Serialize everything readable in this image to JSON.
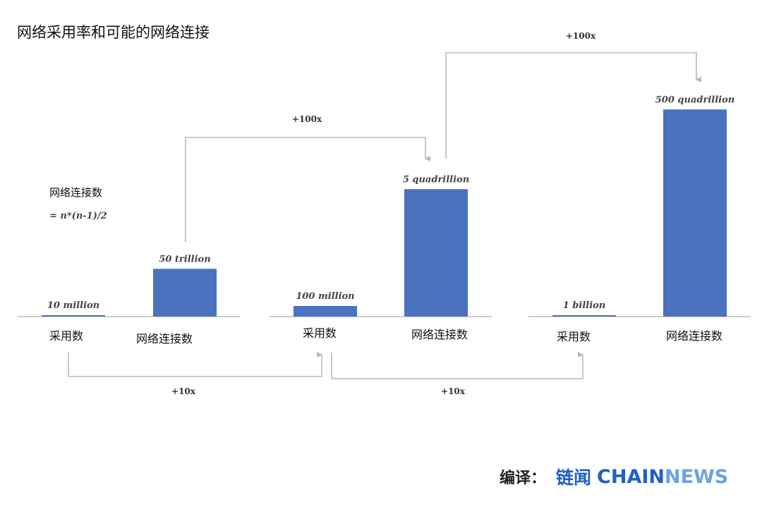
{
  "title": "网络采用率和可能的网络连接",
  "formula": {
    "label": "网络连接数",
    "expression": "= n*(n-1)/2"
  },
  "credit": {
    "prefix": "编译：",
    "cn_brand": "链闻",
    "brand_part1": "CHAIN",
    "brand_part2": "NEWS"
  },
  "colors": {
    "bar": "#4a72bf",
    "arrow": "#b8b8b8",
    "baseline": "#bdbdbd"
  },
  "chart_data": {
    "type": "bar",
    "title": "网络采用率和可能的网络连接",
    "groups": [
      {
        "bars": [
          {
            "category": "采用数",
            "value": 10000000,
            "value_label": "10 million"
          },
          {
            "category": "网络连接数",
            "value": 50000000000000,
            "value_label": "50 trillion"
          }
        ]
      },
      {
        "bars": [
          {
            "category": "采用数",
            "value": 100000000,
            "value_label": "100 million"
          },
          {
            "category": "网络连接数",
            "value": 5000000000000000,
            "value_label": "5 quadrillion"
          }
        ]
      },
      {
        "bars": [
          {
            "category": "采用数",
            "value": 1000000000,
            "value_label": "1 billion"
          },
          {
            "category": "网络连接数",
            "value": 500000000000000000,
            "value_label": "500 quadrillion"
          }
        ]
      }
    ],
    "multipliers": [
      {
        "label": "+10x",
        "from": "group1.采用数",
        "to": "group2.采用数"
      },
      {
        "label": "+10x",
        "from": "group2.采用数",
        "to": "group3.采用数"
      },
      {
        "label": "+100x",
        "from": "group1.网络连接数",
        "to": "group2.网络连接数"
      },
      {
        "label": "+100x",
        "from": "group2.网络连接数",
        "to": "group3.网络连接数"
      }
    ],
    "note": "bar heights are illustrative, not to scale"
  }
}
